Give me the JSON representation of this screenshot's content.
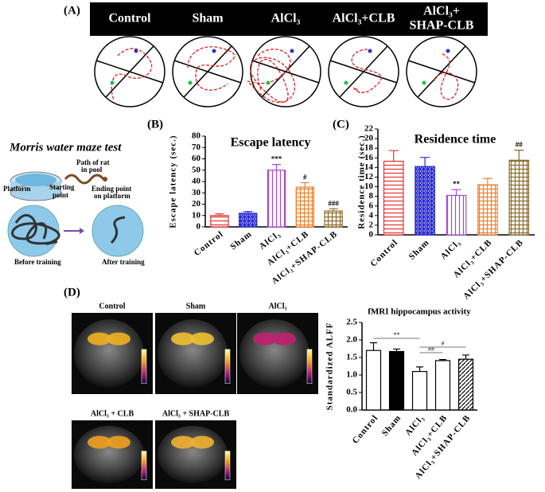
{
  "panel_labels": [
    "(A)",
    "(B)",
    "(C)",
    "(D)"
  ],
  "maze_groups": [
    [
      "Control"
    ],
    [
      "Sham"
    ],
    [
      "AlCl₃"
    ],
    [
      "AlCl₃+CLB"
    ],
    [
      "AlCl₃+",
      "SHAP-CLB"
    ]
  ],
  "illustration": {
    "title": "Morris water maze test",
    "platform": "Platform",
    "starting_point": [
      "Starting",
      "point"
    ],
    "path": [
      "Path of rat",
      "in pool"
    ],
    "ending_point": [
      "Ending point",
      "on platform"
    ],
    "before": "Before training",
    "after": "After training"
  },
  "mri_labels": [
    "Control",
    "Sham",
    "AlCl₃",
    "AlCl₃ + CLB",
    "AlCl₃ + SHAP-CLB"
  ],
  "chart_data": [
    {
      "type": "bar",
      "title": "Escape latency",
      "ylabel": "Escape latency (sec.)",
      "categories": [
        "Control",
        "Sham",
        "AlCl₃",
        "AlCl₃+CLB",
        "AlCl₃+SHAP-CLB"
      ],
      "values": [
        10,
        12,
        50,
        35,
        14
      ],
      "errors": [
        1.5,
        1.5,
        5,
        4,
        2
      ],
      "annotations": [
        null,
        null,
        "***",
        "#",
        "###"
      ],
      "colors": [
        "#e8312f",
        "#2a2ad0",
        "#a44bd0",
        "#f07f2a",
        "#8a6a2a"
      ],
      "patterns": [
        "horizontal",
        "crosshatch",
        "vertical",
        "grid",
        "grid"
      ],
      "ylim": [
        0,
        80
      ],
      "yticks": [
        0,
        10,
        20,
        30,
        40,
        50,
        60,
        70,
        80
      ]
    },
    {
      "type": "bar",
      "title": "Residence time",
      "ylabel": "Residence time (sec.)",
      "categories": [
        "Control",
        "Sham",
        "AlCl₃",
        "AlCl₃+CLB",
        "AlCl₃+SHAP-CLB"
      ],
      "values": [
        15.3,
        14.2,
        8.2,
        10.4,
        15.5
      ],
      "errors": [
        2.2,
        1.9,
        1.2,
        1.3,
        2.1
      ],
      "annotations": [
        null,
        null,
        "**",
        null,
        "##"
      ],
      "colors": [
        "#e8312f",
        "#2a2ad0",
        "#a44bd0",
        "#f07f2a",
        "#8a6a2a"
      ],
      "patterns": [
        "horizontal",
        "crosshatch",
        "vertical",
        "grid",
        "grid"
      ],
      "ylim": [
        0,
        22
      ],
      "yticks": [
        0,
        2,
        4,
        6,
        8,
        10,
        12,
        14,
        16,
        18,
        20,
        22
      ]
    },
    {
      "type": "bar",
      "title": "fMRI hippocampus activity",
      "ylabel": "Standardized ALFF",
      "categories": [
        "Control",
        "Sham",
        "AlCl₃",
        "AlCl₃+CLB",
        "AlCl₃+SHAP-CLB"
      ],
      "values": [
        1.7,
        1.67,
        1.1,
        1.41,
        1.45
      ],
      "errors": [
        0.22,
        0.07,
        0.13,
        0.03,
        0.12
      ],
      "colors": [
        "#ffffff",
        "#000000",
        "#ffffff",
        "#ffffff",
        "#000000"
      ],
      "edgecolor": "#000000",
      "patterns": [
        "solid",
        "solid",
        "solid",
        "solid",
        "diagonal"
      ],
      "brackets": [
        {
          "from": "Control",
          "to": "AlCl₃",
          "text": "**"
        },
        {
          "from": "AlCl₃",
          "to": "AlCl₃+CLB",
          "text": "##"
        },
        {
          "from": "AlCl₃",
          "to": "AlCl₃+SHAP-CLB",
          "text": "#"
        }
      ],
      "ylim": [
        0,
        2.5
      ],
      "yticks": [
        {
          "value": 0,
          "label": "0.0"
        },
        0.5,
        {
          "value": 1,
          "label": "1.0"
        },
        1.5,
        {
          "value": 2,
          "label": "2.0"
        },
        2.5
      ]
    }
  ]
}
